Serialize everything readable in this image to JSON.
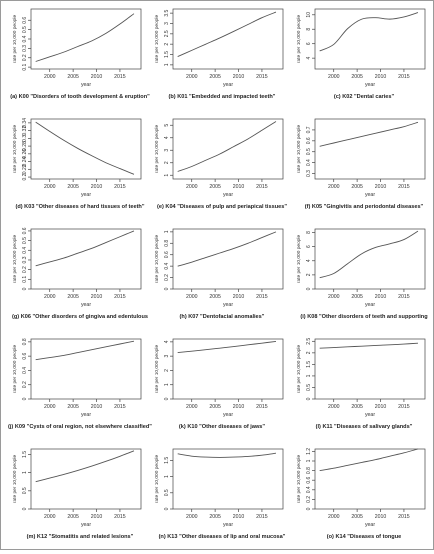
{
  "chart_data": [
    {
      "type": "line",
      "xlabel": "year",
      "ylabel": "rate per 10,000 people",
      "caption": "(a) K00 \"Disorders of tooth development & eruption\"",
      "x": [
        1997,
        2000,
        2003,
        2006,
        2009,
        2012,
        2015,
        2018
      ],
      "y": [
        0.16,
        0.21,
        0.26,
        0.32,
        0.38,
        0.46,
        0.56,
        0.67
      ],
      "ylim": [
        0.08,
        0.72
      ],
      "yticks": [
        0.1,
        0.2,
        0.3,
        0.4,
        0.5,
        0.6
      ],
      "xticks": [
        2000,
        2005,
        2010,
        2015
      ]
    },
    {
      "type": "line",
      "xlabel": "year",
      "ylabel": "rate per 10,000 people",
      "caption": "(b) K01 \"Embedded and impacted teeth\"",
      "x": [
        1997,
        2000,
        2003,
        2006,
        2009,
        2012,
        2015,
        2018
      ],
      "y": [
        1.4,
        1.7,
        2.0,
        2.3,
        2.62,
        2.95,
        3.28,
        3.55
      ],
      "ylim": [
        0.8,
        3.7
      ],
      "yticks": [
        1.0,
        1.5,
        2.0,
        2.5,
        3.0,
        3.5
      ],
      "xticks": [
        2000,
        2005,
        2010,
        2015
      ]
    },
    {
      "type": "line",
      "xlabel": "year",
      "ylabel": "rate per 10,000 people",
      "caption": "(c) K02 \"Dental caries\"",
      "x": [
        1997,
        2000,
        2003,
        2006,
        2009,
        2012,
        2015,
        2018
      ],
      "y": [
        5.0,
        5.9,
        8.1,
        9.4,
        9.6,
        9.4,
        9.7,
        10.3
      ],
      "ylim": [
        2.5,
        10.8
      ],
      "yticks": [
        4,
        6,
        8,
        10
      ],
      "xticks": [
        2000,
        2005,
        2010,
        2015
      ]
    },
    {
      "type": "line",
      "xlabel": "year",
      "ylabel": "rate per 10,000 people",
      "caption": "(d) K03 \"Other diseases of hard tissues of teeth\"",
      "x": [
        1997,
        2000,
        2003,
        2006,
        2009,
        2012,
        2015,
        2018
      ],
      "y": [
        0.342,
        0.318,
        0.295,
        0.274,
        0.255,
        0.237,
        0.222,
        0.207
      ],
      "ylim": [
        0.195,
        0.35
      ],
      "yticks": [
        0.2,
        0.22,
        0.24,
        0.26,
        0.28,
        0.3,
        0.32,
        0.34
      ],
      "xticks": [
        2000,
        2005,
        2010,
        2015
      ]
    },
    {
      "type": "line",
      "xlabel": "year",
      "ylabel": "rate per 10,000 people",
      "caption": "(e) K04 \"Diseases of pulp and periapical tissues\"",
      "x": [
        1997,
        2000,
        2003,
        2006,
        2009,
        2012,
        2015,
        2018
      ],
      "y": [
        1.3,
        1.7,
        2.2,
        2.7,
        3.3,
        3.9,
        4.6,
        5.3
      ],
      "ylim": [
        0.7,
        5.5
      ],
      "yticks": [
        1,
        2,
        3,
        4,
        5
      ],
      "xticks": [
        2000,
        2005,
        2010,
        2015
      ]
    },
    {
      "type": "line",
      "xlabel": "year",
      "ylabel": "rate per 10,000 people",
      "caption": "(f) K05 \"Gingivitis and periodontal diseases\"",
      "x": [
        1997,
        2000,
        2003,
        2006,
        2009,
        2012,
        2015,
        2018
      ],
      "y": [
        0.55,
        0.58,
        0.61,
        0.64,
        0.67,
        0.7,
        0.73,
        0.77
      ],
      "ylim": [
        0.25,
        0.8
      ],
      "yticks": [
        0.3,
        0.4,
        0.5,
        0.6,
        0.7
      ],
      "xticks": [
        2000,
        2005,
        2010,
        2015
      ]
    },
    {
      "type": "line",
      "xlabel": "year",
      "ylabel": "rate per 10,000 people",
      "caption": "(g) K06 \"Other disorders of gingiva and edentulous",
      "x": [
        1997,
        2000,
        2003,
        2006,
        2009,
        2012,
        2015,
        2018
      ],
      "y": [
        0.24,
        0.28,
        0.32,
        0.37,
        0.42,
        0.48,
        0.54,
        0.6
      ],
      "ylim": [
        0.0,
        0.62
      ],
      "yticks": [
        0.0,
        0.1,
        0.2,
        0.3,
        0.4,
        0.5,
        0.6
      ],
      "xticks": [
        2000,
        2005,
        2010,
        2015
      ]
    },
    {
      "type": "line",
      "xlabel": "year",
      "ylabel": "rate per 10,000 people",
      "caption": "(h) K07 \"Dentofacial anomalies\"",
      "x": [
        1997,
        2000,
        2003,
        2006,
        2009,
        2012,
        2015,
        2018
      ],
      "y": [
        0.4,
        0.47,
        0.55,
        0.63,
        0.71,
        0.8,
        0.9,
        1.0
      ],
      "ylim": [
        0.0,
        1.05
      ],
      "yticks": [
        0.0,
        0.2,
        0.4,
        0.6,
        0.8,
        1.0
      ],
      "xticks": [
        2000,
        2005,
        2010,
        2015
      ]
    },
    {
      "type": "line",
      "xlabel": "year",
      "ylabel": "rate per 10,000 people",
      "caption": "(i) K08 \"Other disorders of teeth and supporting",
      "x": [
        1997,
        2000,
        2003,
        2006,
        2009,
        2012,
        2015,
        2018
      ],
      "y": [
        1.6,
        2.2,
        3.6,
        5.0,
        5.9,
        6.4,
        7.0,
        8.2
      ],
      "ylim": [
        0.0,
        8.5
      ],
      "yticks": [
        0,
        2,
        4,
        6,
        8
      ],
      "xticks": [
        2000,
        2005,
        2010,
        2015
      ]
    },
    {
      "type": "line",
      "xlabel": "year",
      "ylabel": "rate per 10,000 people",
      "caption": "(j) K09 \"Cysts of oral region, not elsewhere classified\"",
      "x": [
        1997,
        2000,
        2003,
        2006,
        2009,
        2012,
        2015,
        2018
      ],
      "y": [
        0.55,
        0.58,
        0.61,
        0.65,
        0.69,
        0.73,
        0.77,
        0.81
      ],
      "ylim": [
        0.0,
        0.84
      ],
      "yticks": [
        0.0,
        0.2,
        0.4,
        0.6,
        0.8
      ],
      "xticks": [
        2000,
        2005,
        2010,
        2015
      ]
    },
    {
      "type": "line",
      "xlabel": "year",
      "ylabel": "rate per 10,000 people",
      "caption": "(k) K10 \"Other diseases of jaws\"",
      "x": [
        1997,
        2000,
        2003,
        2006,
        2009,
        2012,
        2015,
        2018
      ],
      "y": [
        3.25,
        3.35,
        3.45,
        3.56,
        3.67,
        3.79,
        3.91,
        4.03
      ],
      "ylim": [
        0.0,
        4.2
      ],
      "yticks": [
        0,
        1,
        2,
        3,
        4
      ],
      "xticks": [
        2000,
        2005,
        2010,
        2015
      ]
    },
    {
      "type": "line",
      "xlabel": "year",
      "ylabel": "rate per 10,000 people",
      "caption": "(l) K11 \"Diseases of salivary glands\"",
      "x": [
        1997,
        2000,
        2003,
        2006,
        2009,
        2012,
        2015,
        2018
      ],
      "y": [
        2.2,
        2.23,
        2.26,
        2.29,
        2.32,
        2.35,
        2.38,
        2.42
      ],
      "ylim": [
        0.0,
        2.6
      ],
      "yticks": [
        0.0,
        0.5,
        1.0,
        1.5,
        2.0,
        2.5
      ],
      "xticks": [
        2000,
        2005,
        2010,
        2015
      ]
    },
    {
      "type": "line",
      "xlabel": "year",
      "ylabel": "rate per 10,000 people",
      "caption": "(m) K12 \"Stomatitis and related lesions\"",
      "x": [
        1997,
        2000,
        2003,
        2006,
        2009,
        2012,
        2015,
        2018
      ],
      "y": [
        0.75,
        0.85,
        0.95,
        1.06,
        1.18,
        1.31,
        1.45,
        1.6
      ],
      "ylim": [
        0.0,
        1.65
      ],
      "yticks": [
        0.0,
        0.5,
        1.0,
        1.5
      ],
      "xticks": [
        2000,
        2005,
        2010,
        2015
      ]
    },
    {
      "type": "line",
      "xlabel": "year",
      "ylabel": "rate per 10,000 people",
      "caption": "(n) K13 \"Other diseases of lip and oral mucosa\"",
      "x": [
        1997,
        2000,
        2003,
        2006,
        2009,
        2012,
        2015,
        2018
      ],
      "y": [
        1.7,
        1.63,
        1.6,
        1.59,
        1.6,
        1.62,
        1.66,
        1.72
      ],
      "ylim": [
        0.0,
        1.85
      ],
      "yticks": [
        0.0,
        0.5,
        1.0,
        1.5
      ],
      "xticks": [
        2000,
        2005,
        2010,
        2015
      ]
    },
    {
      "type": "line",
      "xlabel": "year",
      "ylabel": "rate per 10,000 people",
      "caption": "(o) K14 \"Diseases of tongue",
      "x": [
        1997,
        2000,
        2003,
        2006,
        2009,
        2012,
        2015,
        2018
      ],
      "y": [
        0.8,
        0.85,
        0.91,
        0.97,
        1.03,
        1.1,
        1.17,
        1.25
      ],
      "ylim": [
        0.0,
        1.25
      ],
      "yticks": [
        0.0,
        0.2,
        0.4,
        0.6,
        0.8,
        1.0,
        1.2
      ],
      "xticks": [
        2000,
        2005,
        2010,
        2015
      ]
    }
  ]
}
